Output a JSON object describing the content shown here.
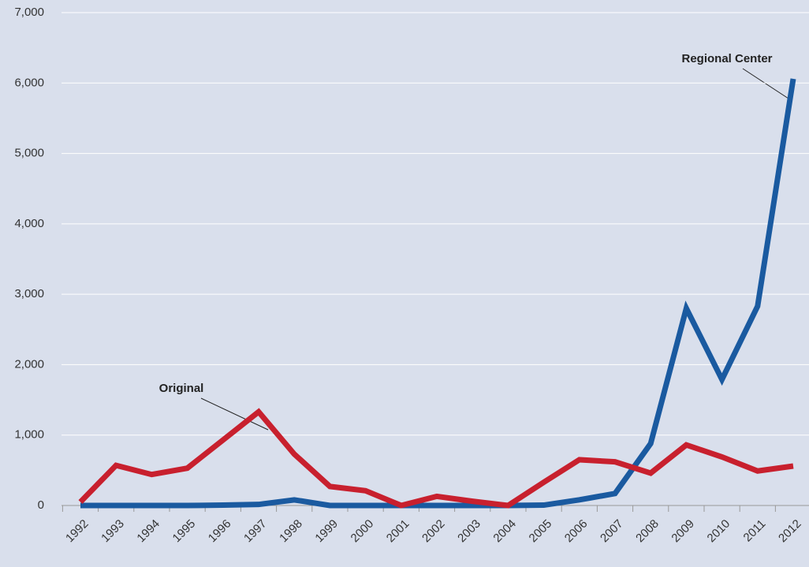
{
  "chart_data": {
    "type": "line",
    "categories": [
      "1992",
      "1993",
      "1994",
      "1995",
      "1996",
      "1997",
      "1998",
      "1999",
      "2000",
      "2001",
      "2002",
      "2003",
      "2004",
      "2005",
      "2006",
      "2007",
      "2008",
      "2009",
      "2010",
      "2011",
      "2012"
    ],
    "series": [
      {
        "name": "Regional Center",
        "color": "#1a5aa0",
        "values": [
          0,
          0,
          0,
          0,
          5,
          15,
          80,
          0,
          0,
          0,
          0,
          0,
          0,
          5,
          80,
          170,
          880,
          2800,
          1790,
          2830,
          6060
        ]
      },
      {
        "name": "Original",
        "color": "#c8202e",
        "values": [
          50,
          570,
          440,
          530,
          930,
          1330,
          730,
          270,
          210,
          0,
          130,
          60,
          0,
          330,
          650,
          620,
          460,
          860,
          690,
          490,
          560
        ]
      }
    ],
    "ylim": [
      0,
      7000
    ],
    "yticks": [
      0,
      {
        "value": 1000,
        "label": "1,000"
      },
      {
        "value": 2000,
        "label": "2,000"
      },
      {
        "value": 3000,
        "label": "3,000"
      },
      {
        "value": 4000,
        "label": "4,000"
      },
      {
        "value": 5000,
        "label": "5,000"
      },
      {
        "value": 6000,
        "label": "6,000"
      },
      {
        "value": 7000,
        "label": "7,000"
      }
    ],
    "grid": true
  }
}
